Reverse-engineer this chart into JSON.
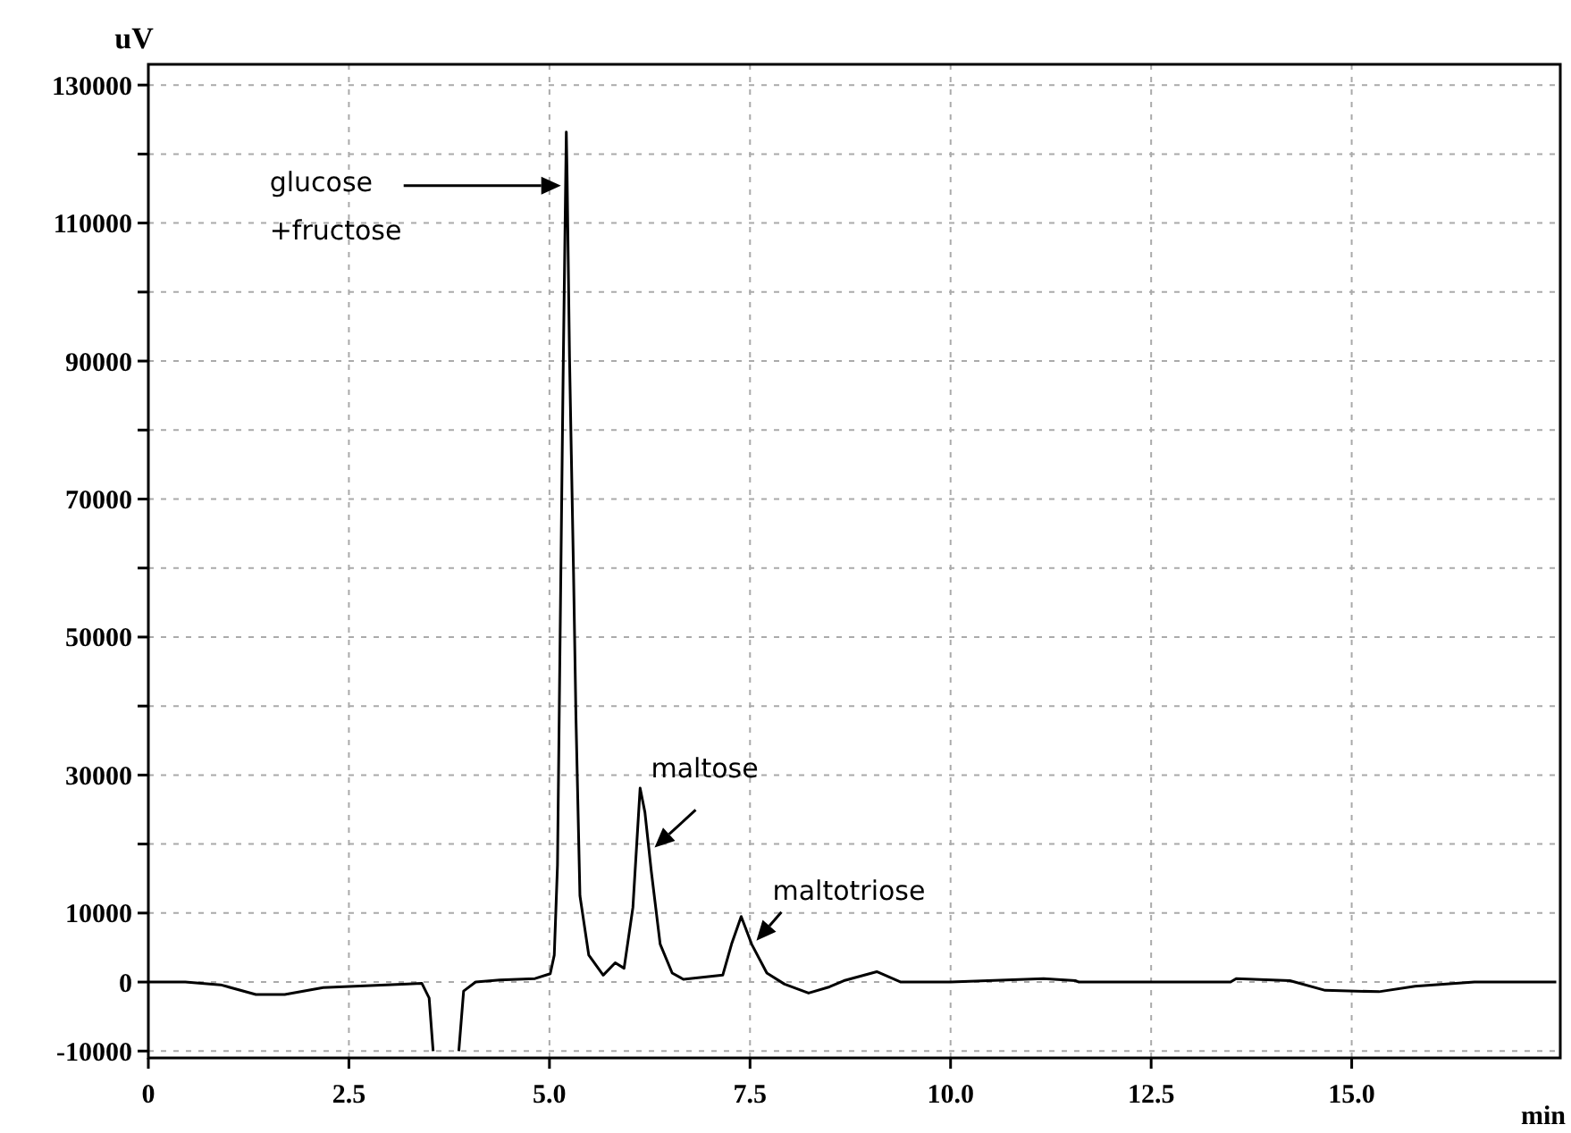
{
  "chart_data": {
    "type": "line",
    "xlabel": "min",
    "ylabel": "uV",
    "xlim": [
      0,
      17.6
    ],
    "ylim": [
      -11000,
      133000
    ],
    "xticks": [
      0,
      2.5,
      {
        "value": 5,
        "label": "5.0"
      },
      7.5,
      {
        "value": 10,
        "label": "10.0"
      },
      12.5,
      {
        "value": 15,
        "label": "15.0"
      }
    ],
    "yticks": [
      -10000,
      0,
      10000,
      {
        "value": 20000,
        "label": null
      },
      30000,
      {
        "value": 40000,
        "label": null
      },
      50000,
      {
        "value": 60000,
        "label": null
      },
      70000,
      {
        "value": 80000,
        "label": null
      },
      90000,
      {
        "value": 100000,
        "label": null
      },
      110000,
      {
        "value": 120000,
        "label": null
      },
      130000
    ],
    "grid": true,
    "marker": "none",
    "line_style": "solid",
    "series": [
      {
        "color": "#000000",
        "x": [
          0,
          0.46,
          0.9,
          1.34,
          1.7,
          2.18,
          3.23,
          3.41,
          3.5,
          3.55,
          3.56,
          3.86,
          3.87,
          3.93,
          4.08,
          4.38,
          4.82,
          5.01,
          5.06,
          5.1,
          5.13,
          5.17,
          5.21,
          5.22,
          5.25,
          5.3,
          5.33,
          5.38,
          5.49,
          5.67,
          5.82,
          5.93,
          6.04,
          6.13,
          6.19,
          6.27,
          6.38,
          6.53,
          6.67,
          7.16,
          7.27,
          7.39,
          7.52,
          7.71,
          7.93,
          8.23,
          8.49,
          8.67,
          9.08,
          9.38,
          10,
          11.16,
          11.56,
          11.6,
          13.49,
          13.56,
          14.23,
          14.67,
          15.34,
          15.79,
          16.53,
          17.55
        ],
        "values": [
          0,
          0,
          -400,
          -1800,
          -1800,
          -800,
          -300,
          -200,
          -2300,
          -10000,
          null,
          null,
          -10000,
          -1300,
          0,
          300,
          500,
          1200,
          3900,
          16900,
          47200,
          87600,
          123200,
          116700,
          90600,
          59400,
          38500,
          12500,
          3900,
          1000,
          2800,
          2000,
          10800,
          28100,
          24600,
          16000,
          5500,
          1300,
          400,
          1000,
          5500,
          9500,
          5500,
          1300,
          -300,
          -1600,
          -700,
          200,
          1500,
          0,
          0,
          500,
          200,
          0,
          0,
          500,
          200,
          -1200,
          -1400,
          -600,
          0,
          0
        ]
      }
    ],
    "annotations": [
      "glucose\n+fructose",
      {
        "text": "maltose",
        "x": 6.31,
        "y": 19500
      },
      {
        "text": "maltotriose",
        "x": 7.58,
        "y": 6000
      }
    ]
  }
}
